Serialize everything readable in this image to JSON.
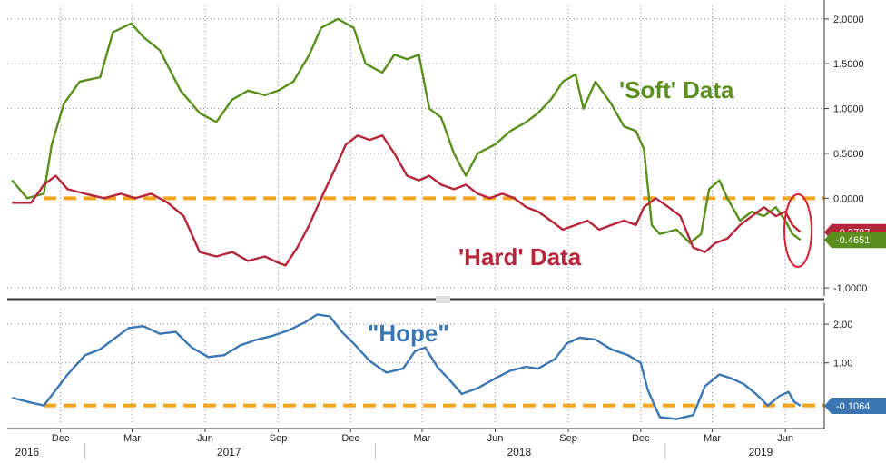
{
  "chart_data": [
    {
      "type": "line",
      "panel": "top",
      "ylim": [
        -1.05,
        2.15
      ],
      "yticks": [
        -1.0,
        0.5,
        1.0,
        1.5,
        2.0
      ],
      "ytick_labels": [
        "-1.0000",
        "0.5000",
        "1.0000",
        "1.5000",
        "2.0000"
      ],
      "extra_tick": {
        "value": 0.0,
        "label": "0.0000"
      },
      "reference_line": {
        "value": 0.0,
        "style": "dashed",
        "color": "#f2a51f"
      },
      "grid": true,
      "series": [
        {
          "name": "'Soft' Data",
          "color": "#5a8f1e",
          "last_value": -0.4651,
          "last_label": "-0.4651",
          "points": [
            [
              "2016-10-01",
              0.2
            ],
            [
              "2016-10-20",
              0.0
            ],
            [
              "2016-11-10",
              0.05
            ],
            [
              "2016-11-20",
              0.6
            ],
            [
              "2016-12-05",
              1.05
            ],
            [
              "2016-12-25",
              1.3
            ],
            [
              "2017-01-20",
              1.35
            ],
            [
              "2017-02-05",
              1.85
            ],
            [
              "2017-02-28",
              1.95
            ],
            [
              "2017-03-15",
              1.8
            ],
            [
              "2017-04-05",
              1.65
            ],
            [
              "2017-05-01",
              1.2
            ],
            [
              "2017-05-25",
              0.95
            ],
            [
              "2017-06-15",
              0.85
            ],
            [
              "2017-07-05",
              1.1
            ],
            [
              "2017-07-25",
              1.2
            ],
            [
              "2017-08-15",
              1.15
            ],
            [
              "2017-09-01",
              1.2
            ],
            [
              "2017-09-20",
              1.3
            ],
            [
              "2017-10-10",
              1.6
            ],
            [
              "2017-10-25",
              1.9
            ],
            [
              "2017-11-15",
              2.0
            ],
            [
              "2017-12-05",
              1.9
            ],
            [
              "2017-12-20",
              1.5
            ],
            [
              "2018-01-10",
              1.4
            ],
            [
              "2018-01-25",
              1.6
            ],
            [
              "2018-02-10",
              1.55
            ],
            [
              "2018-02-25",
              1.6
            ],
            [
              "2018-03-10",
              1.0
            ],
            [
              "2018-03-25",
              0.9
            ],
            [
              "2018-04-10",
              0.5
            ],
            [
              "2018-04-25",
              0.25
            ],
            [
              "2018-05-10",
              0.5
            ],
            [
              "2018-06-01",
              0.6
            ],
            [
              "2018-06-20",
              0.75
            ],
            [
              "2018-07-10",
              0.85
            ],
            [
              "2018-07-25",
              0.95
            ],
            [
              "2018-08-10",
              1.1
            ],
            [
              "2018-08-25",
              1.3
            ],
            [
              "2018-09-10",
              1.38
            ],
            [
              "2018-09-20",
              1.0
            ],
            [
              "2018-10-05",
              1.3
            ],
            [
              "2018-10-25",
              1.05
            ],
            [
              "2018-11-10",
              0.8
            ],
            [
              "2018-11-25",
              0.75
            ],
            [
              "2018-12-05",
              0.55
            ],
            [
              "2018-12-15",
              -0.3
            ],
            [
              "2018-12-25",
              -0.4
            ],
            [
              "2019-01-15",
              -0.35
            ],
            [
              "2019-02-01",
              -0.5
            ],
            [
              "2019-02-15",
              -0.4
            ],
            [
              "2019-02-25",
              0.1
            ],
            [
              "2019-03-10",
              0.2
            ],
            [
              "2019-03-20",
              0.0
            ],
            [
              "2019-04-05",
              -0.25
            ],
            [
              "2019-04-20",
              -0.15
            ],
            [
              "2019-05-05",
              -0.2
            ],
            [
              "2019-05-20",
              -0.1
            ],
            [
              "2019-06-01",
              -0.25
            ],
            [
              "2019-06-10",
              -0.4
            ],
            [
              "2019-06-20",
              -0.4651
            ]
          ]
        },
        {
          "name": "'Hard' Data",
          "color": "#b5263a",
          "last_value": -0.3787,
          "last_label": "-0.3787",
          "points": [
            [
              "2016-10-01",
              -0.05
            ],
            [
              "2016-10-25",
              -0.05
            ],
            [
              "2016-11-10",
              0.15
            ],
            [
              "2016-11-25",
              0.25
            ],
            [
              "2016-12-10",
              0.1
            ],
            [
              "2017-01-01",
              0.05
            ],
            [
              "2017-01-25",
              0.0
            ],
            [
              "2017-02-15",
              0.05
            ],
            [
              "2017-03-05",
              0.0
            ],
            [
              "2017-03-25",
              0.05
            ],
            [
              "2017-04-15",
              -0.05
            ],
            [
              "2017-05-05",
              -0.2
            ],
            [
              "2017-05-25",
              -0.6
            ],
            [
              "2017-06-15",
              -0.65
            ],
            [
              "2017-07-05",
              -0.6
            ],
            [
              "2017-07-25",
              -0.7
            ],
            [
              "2017-08-15",
              -0.65
            ],
            [
              "2017-09-01",
              -0.72
            ],
            [
              "2017-09-10",
              -0.75
            ],
            [
              "2017-09-25",
              -0.55
            ],
            [
              "2017-10-10",
              -0.3
            ],
            [
              "2017-10-25",
              0.0
            ],
            [
              "2017-11-10",
              0.3
            ],
            [
              "2017-11-25",
              0.6
            ],
            [
              "2017-12-10",
              0.7
            ],
            [
              "2017-12-25",
              0.65
            ],
            [
              "2018-01-10",
              0.7
            ],
            [
              "2018-01-25",
              0.5
            ],
            [
              "2018-02-10",
              0.25
            ],
            [
              "2018-02-25",
              0.2
            ],
            [
              "2018-03-10",
              0.25
            ],
            [
              "2018-03-25",
              0.15
            ],
            [
              "2018-04-10",
              0.1
            ],
            [
              "2018-04-25",
              0.15
            ],
            [
              "2018-05-10",
              0.05
            ],
            [
              "2018-05-25",
              0.0
            ],
            [
              "2018-06-10",
              0.05
            ],
            [
              "2018-06-25",
              0.0
            ],
            [
              "2018-07-10",
              -0.1
            ],
            [
              "2018-07-25",
              -0.15
            ],
            [
              "2018-08-10",
              -0.25
            ],
            [
              "2018-08-25",
              -0.35
            ],
            [
              "2018-09-10",
              -0.3
            ],
            [
              "2018-09-25",
              -0.25
            ],
            [
              "2018-10-10",
              -0.35
            ],
            [
              "2018-10-25",
              -0.3
            ],
            [
              "2018-11-10",
              -0.25
            ],
            [
              "2018-11-25",
              -0.3
            ],
            [
              "2018-12-05",
              -0.1
            ],
            [
              "2018-12-20",
              0.0
            ],
            [
              "2019-01-05",
              -0.1
            ],
            [
              "2019-01-20",
              -0.2
            ],
            [
              "2019-02-05",
              -0.55
            ],
            [
              "2019-02-20",
              -0.6
            ],
            [
              "2019-03-05",
              -0.5
            ],
            [
              "2019-03-20",
              -0.45
            ],
            [
              "2019-04-05",
              -0.3
            ],
            [
              "2019-04-20",
              -0.2
            ],
            [
              "2019-05-05",
              -0.1
            ],
            [
              "2019-05-20",
              -0.2
            ],
            [
              "2019-06-01",
              -0.15
            ],
            [
              "2019-06-10",
              -0.3
            ],
            [
              "2019-06-20",
              -0.3787
            ]
          ]
        }
      ],
      "annotations": [
        "'Soft' Data",
        "'Hard' Data"
      ]
    },
    {
      "type": "line",
      "panel": "bottom",
      "ylim": [
        -0.6,
        2.4
      ],
      "yticks": [
        1.0,
        2.0
      ],
      "ytick_labels": [
        "1.00",
        "2.00"
      ],
      "reference_line": {
        "value": -0.1,
        "style": "dashed",
        "color": "#f2a51f"
      },
      "grid": true,
      "series": [
        {
          "name": "\"Hope\"",
          "color": "#3a77b2",
          "last_value": -0.1064,
          "last_label": "-0.1064",
          "points": [
            [
              "2016-10-01",
              0.1
            ],
            [
              "2016-10-20",
              0.0
            ],
            [
              "2016-11-10",
              -0.1
            ],
            [
              "2016-11-25",
              0.3
            ],
            [
              "2016-12-10",
              0.7
            ],
            [
              "2017-01-01",
              1.2
            ],
            [
              "2017-01-20",
              1.35
            ],
            [
              "2017-02-05",
              1.6
            ],
            [
              "2017-02-25",
              1.9
            ],
            [
              "2017-03-15",
              1.95
            ],
            [
              "2017-04-05",
              1.75
            ],
            [
              "2017-04-25",
              1.8
            ],
            [
              "2017-05-15",
              1.4
            ],
            [
              "2017-06-05",
              1.15
            ],
            [
              "2017-06-25",
              1.2
            ],
            [
              "2017-07-15",
              1.45
            ],
            [
              "2017-08-05",
              1.6
            ],
            [
              "2017-08-25",
              1.7
            ],
            [
              "2017-09-15",
              1.85
            ],
            [
              "2017-10-05",
              2.05
            ],
            [
              "2017-10-20",
              2.25
            ],
            [
              "2017-11-05",
              2.2
            ],
            [
              "2017-11-20",
              1.8
            ],
            [
              "2017-12-05",
              1.5
            ],
            [
              "2017-12-25",
              1.05
            ],
            [
              "2018-01-15",
              0.75
            ],
            [
              "2018-02-05",
              0.85
            ],
            [
              "2018-02-20",
              1.3
            ],
            [
              "2018-03-05",
              1.4
            ],
            [
              "2018-03-20",
              0.9
            ],
            [
              "2018-04-05",
              0.55
            ],
            [
              "2018-04-20",
              0.2
            ],
            [
              "2018-05-10",
              0.35
            ],
            [
              "2018-06-01",
              0.6
            ],
            [
              "2018-06-20",
              0.8
            ],
            [
              "2018-07-10",
              0.9
            ],
            [
              "2018-07-25",
              0.85
            ],
            [
              "2018-08-15",
              1.1
            ],
            [
              "2018-08-30",
              1.5
            ],
            [
              "2018-09-15",
              1.65
            ],
            [
              "2018-10-05",
              1.6
            ],
            [
              "2018-10-25",
              1.35
            ],
            [
              "2018-11-15",
              1.2
            ],
            [
              "2018-12-01",
              1.0
            ],
            [
              "2018-12-10",
              0.3
            ],
            [
              "2018-12-25",
              -0.4
            ],
            [
              "2019-01-15",
              -0.45
            ],
            [
              "2019-02-05",
              -0.35
            ],
            [
              "2019-02-20",
              0.4
            ],
            [
              "2019-03-10",
              0.7
            ],
            [
              "2019-03-25",
              0.6
            ],
            [
              "2019-04-10",
              0.45
            ],
            [
              "2019-04-25",
              0.2
            ],
            [
              "2019-05-10",
              -0.1
            ],
            [
              "2019-05-25",
              0.15
            ],
            [
              "2019-06-05",
              0.25
            ],
            [
              "2019-06-12",
              0.0
            ],
            [
              "2019-06-20",
              -0.1064
            ]
          ]
        }
      ],
      "annotations": [
        "\"Hope\""
      ]
    }
  ],
  "x_axis": {
    "range": [
      "2016-09-25",
      "2019-07-20"
    ],
    "month_ticks": [
      {
        "date": "2016-12-01",
        "label": "Dec"
      },
      {
        "date": "2017-03-01",
        "label": "Mar"
      },
      {
        "date": "2017-06-01",
        "label": "Jun"
      },
      {
        "date": "2017-09-01",
        "label": "Sep"
      },
      {
        "date": "2017-12-01",
        "label": "Dec"
      },
      {
        "date": "2018-03-01",
        "label": "Mar"
      },
      {
        "date": "2018-06-01",
        "label": "Jun"
      },
      {
        "date": "2018-09-01",
        "label": "Sep"
      },
      {
        "date": "2018-12-01",
        "label": "Dec"
      },
      {
        "date": "2019-03-01",
        "label": "Mar"
      },
      {
        "date": "2019-06-01",
        "label": "Jun"
      }
    ],
    "year_labels": [
      {
        "date": "2016-10-20",
        "label": "2016"
      },
      {
        "date": "2017-07-01",
        "label": "2017"
      },
      {
        "date": "2018-07-01",
        "label": "2018"
      },
      {
        "date": "2019-05-01",
        "label": "2019"
      }
    ],
    "year_separators": [
      "2017-01-01",
      "2018-01-01",
      "2019-01-01"
    ]
  },
  "colors": {
    "reference": "#f2a51f",
    "highlight_circle": "#d9202e",
    "axis": "#333333",
    "grid": "#888888"
  }
}
